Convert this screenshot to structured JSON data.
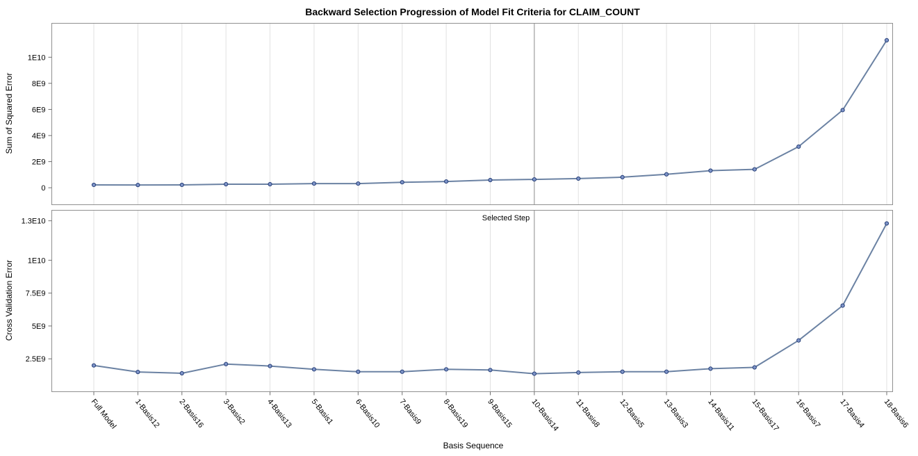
{
  "chart_data": {
    "type": "line",
    "title": "Backward Selection Progression of Model Fit Criteria for CLAIM_COUNT",
    "xlabel": "Basis Sequence",
    "categories": [
      "Full Model",
      "1-Basis12",
      "2-Basis16",
      "3-Basis2",
      "4-Basis13",
      "5-Basis1",
      "6-Basis10",
      "7-Basis9",
      "8-Basis19",
      "9-Basis15",
      "10-Basis14",
      "11-Basis8",
      "12-Basis5",
      "13-Basis3",
      "14-Basis11",
      "15-Basis17",
      "16-Basis7",
      "17-Basis4",
      "18-Basis6"
    ],
    "grid": true,
    "selected_step": {
      "category": "10-Basis14",
      "label": "Selected Step"
    },
    "panels": [
      {
        "ylabel": "Sum of Squared Error",
        "ylim": [
          -1300000000,
          12600000000
        ],
        "yticks": [
          0,
          2000000000,
          4000000000,
          6000000000,
          8000000000,
          10000000000
        ],
        "ytick_labels": [
          "0",
          "2E9",
          "4E9",
          "6E9",
          "8E9",
          "1E10"
        ],
        "values": [
          220000000,
          210000000,
          220000000,
          270000000,
          270000000,
          320000000,
          320000000,
          420000000,
          480000000,
          590000000,
          640000000,
          700000000,
          810000000,
          1030000000,
          1310000000,
          1410000000,
          3150000000,
          5950000000,
          11300000000
        ]
      },
      {
        "ylabel": "Cross Validation Error",
        "ylim": [
          0,
          13800000000
        ],
        "yticks": [
          2500000000,
          5000000000,
          7500000000,
          10000000000,
          13000000000
        ],
        "ytick_labels": [
          "2.5E9",
          "5E9",
          "7.5E9",
          "1E10",
          "1.3E10"
        ],
        "values": [
          2000000000,
          1500000000,
          1400000000,
          2100000000,
          1950000000,
          1700000000,
          1520000000,
          1520000000,
          1700000000,
          1650000000,
          1370000000,
          1460000000,
          1520000000,
          1520000000,
          1750000000,
          1850000000,
          3900000000,
          6550000000,
          12800000000
        ]
      }
    ],
    "colors": {
      "line": "#6b82a3",
      "marker_fill": "#7d93c7",
      "marker_stroke": "#263f78"
    }
  }
}
